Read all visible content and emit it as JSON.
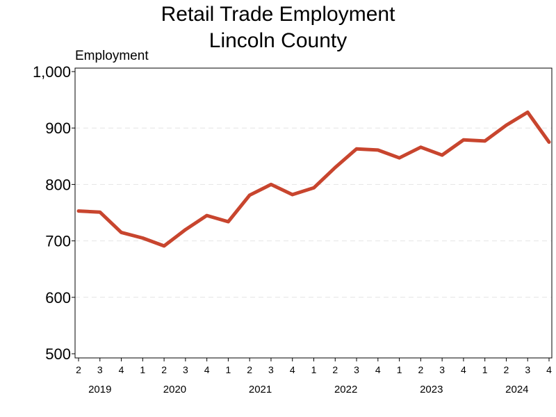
{
  "chart_data": {
    "type": "line",
    "title": [
      "Retail Trade Employment",
      "Lincoln County"
    ],
    "ylabel": "Employment",
    "ylim": [
      500,
      1000
    ],
    "yticks": [
      500,
      600,
      700,
      800,
      900,
      1000
    ],
    "ytick_labels": [
      "500",
      "600",
      "700",
      "800",
      "900",
      "1,000"
    ],
    "grid": true,
    "line_color": "#c8452e",
    "x": [
      "2019 Q2",
      "2019 Q3",
      "2019 Q4",
      "2020 Q1",
      "2020 Q2",
      "2020 Q3",
      "2020 Q4",
      "2021 Q1",
      "2021 Q2",
      "2021 Q3",
      "2021 Q4",
      "2022 Q1",
      "2022 Q2",
      "2022 Q3",
      "2022 Q4",
      "2023 Q1",
      "2023 Q2",
      "2023 Q3",
      "2023 Q4",
      "2024 Q1",
      "2024 Q2",
      "2024 Q3",
      "2024 Q4"
    ],
    "quarter_labels": [
      "2",
      "3",
      "4",
      "1",
      "2",
      "3",
      "4",
      "1",
      "2",
      "3",
      "4",
      "1",
      "2",
      "3",
      "4",
      "1",
      "2",
      "3",
      "4",
      "1",
      "2",
      "3",
      "4"
    ],
    "years": [
      {
        "label": "2019",
        "first_index": 0,
        "last_index": 2
      },
      {
        "label": "2020",
        "first_index": 3,
        "last_index": 6
      },
      {
        "label": "2021",
        "first_index": 7,
        "last_index": 10
      },
      {
        "label": "2022",
        "first_index": 11,
        "last_index": 14
      },
      {
        "label": "2023",
        "first_index": 15,
        "last_index": 18
      },
      {
        "label": "2024",
        "first_index": 19,
        "last_index": 22
      }
    ],
    "values": [
      753,
      751,
      715,
      705,
      691,
      720,
      745,
      734,
      781,
      800,
      782,
      794,
      830,
      863,
      861,
      847,
      866,
      852,
      879,
      877,
      905,
      928,
      875
    ]
  }
}
